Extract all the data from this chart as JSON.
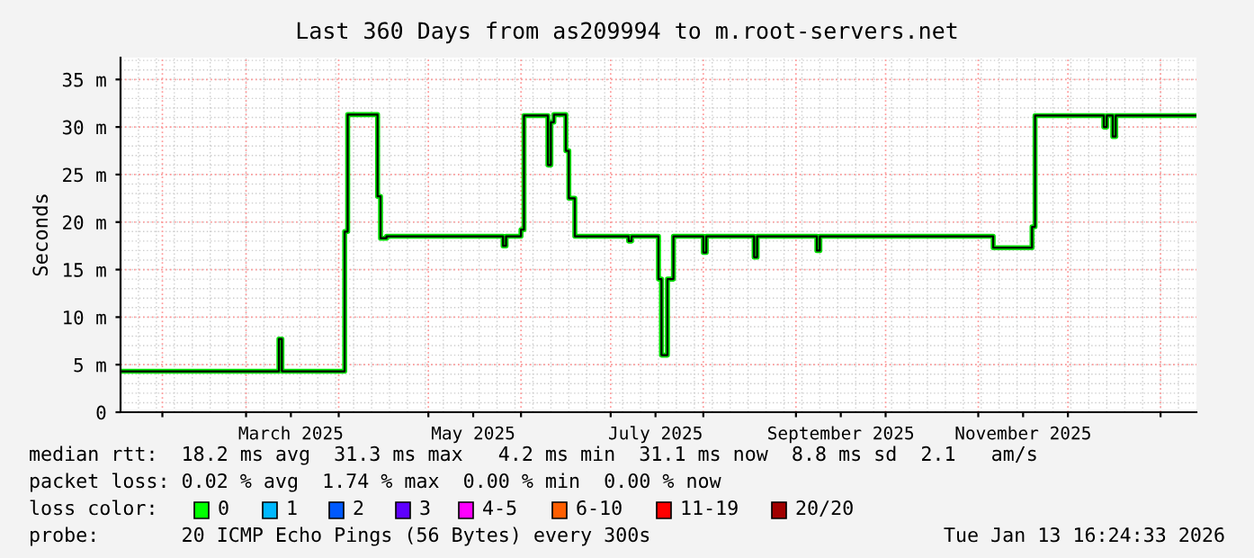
{
  "chart_data": {
    "type": "step",
    "title": "Last 360 Days from as209994 to m.root-servers.net",
    "ylabel": "Seconds",
    "x": [
      "2025-01-18",
      "2025-03-11",
      "2025-03-12",
      "2025-03-13",
      "2025-04-03",
      "2025-04-04",
      "2025-04-14",
      "2025-04-15",
      "2025-04-17",
      "2025-05-26",
      "2025-05-27",
      "2025-06-01",
      "2025-06-02",
      "2025-06-10",
      "2025-06-11",
      "2025-06-12",
      "2025-06-16",
      "2025-06-17",
      "2025-06-19",
      "2025-07-07",
      "2025-07-08",
      "2025-07-17",
      "2025-07-18",
      "2025-07-20",
      "2025-07-22",
      "2025-08-01",
      "2025-08-02",
      "2025-08-18",
      "2025-08-19",
      "2025-09-08",
      "2025-09-09",
      "2025-11-06",
      "2025-11-19",
      "2025-11-20",
      "2025-12-13",
      "2025-12-14",
      "2025-12-16",
      "2025-12-17",
      "2026-01-13"
    ],
    "series": [
      {
        "color": "#00e000",
        "values": [
          4.3,
          4.3,
          7.7,
          4.3,
          19.0,
          31.3,
          22.7,
          18.3,
          18.5,
          17.5,
          18.5,
          19.2,
          31.2,
          26.0,
          30.5,
          31.3,
          27.5,
          22.5,
          18.5,
          18.0,
          18.5,
          14.0,
          6.0,
          14.0,
          18.5,
          16.8,
          18.5,
          16.3,
          18.5,
          17.0,
          18.5,
          17.3,
          19.5,
          31.2,
          30.0,
          31.2,
          29.0,
          31.2,
          31.2
        ]
      }
    ],
    "xlim": [
      "2025-01-18",
      "2026-01-13"
    ],
    "xticks": [
      {
        "value": "2025-02-01",
        "label": null
      },
      {
        "value": "2025-03-01",
        "label": null
      },
      {
        "value": "2025-03-16",
        "label": "March 2025"
      },
      {
        "value": "2025-04-01",
        "label": null
      },
      {
        "value": "2025-05-01",
        "label": null
      },
      {
        "value": "2025-05-16",
        "label": "May 2025"
      },
      {
        "value": "2025-06-01",
        "label": null
      },
      {
        "value": "2025-07-01",
        "label": null
      },
      {
        "value": "2025-07-16",
        "label": "July 2025"
      },
      {
        "value": "2025-08-01",
        "label": null
      },
      {
        "value": "2025-09-01",
        "label": null
      },
      {
        "value": "2025-09-16",
        "label": "September 2025"
      },
      {
        "value": "2025-10-01",
        "label": null
      },
      {
        "value": "2025-11-01",
        "label": null
      },
      {
        "value": "2025-11-16",
        "label": "November 2025"
      },
      {
        "value": "2025-12-01",
        "label": null
      },
      {
        "value": "2026-01-01",
        "label": null
      }
    ],
    "ylim": [
      0,
      37.3
    ],
    "yticks": [
      0,
      {
        "value": 5,
        "label": "5 m"
      },
      {
        "value": 10,
        "label": "10 m"
      },
      {
        "value": 15,
        "label": "15 m"
      },
      {
        "value": 20,
        "label": "20 m"
      },
      {
        "value": 25,
        "label": "25 m"
      },
      {
        "value": 30,
        "label": "30 m"
      },
      {
        "value": 35,
        "label": "35 m"
      }
    ],
    "grid": true,
    "annotations": [
      "median rtt:  18.2 ms avg  31.3 ms max   4.2 ms min  31.1 ms now  8.8 ms sd  2.1   am/s",
      "packet loss: 0.02 % avg  1.74 % max  0.00 % min  0.00 % now",
      "loss color:",
      "0",
      "1",
      "2",
      "3",
      "4-5",
      "6-10",
      "11-19",
      "20/20",
      "probe:       20 ICMP Echo Pings (56 Bytes) every 300s",
      "Tue Jan 13 16:24:33 2026"
    ]
  }
}
